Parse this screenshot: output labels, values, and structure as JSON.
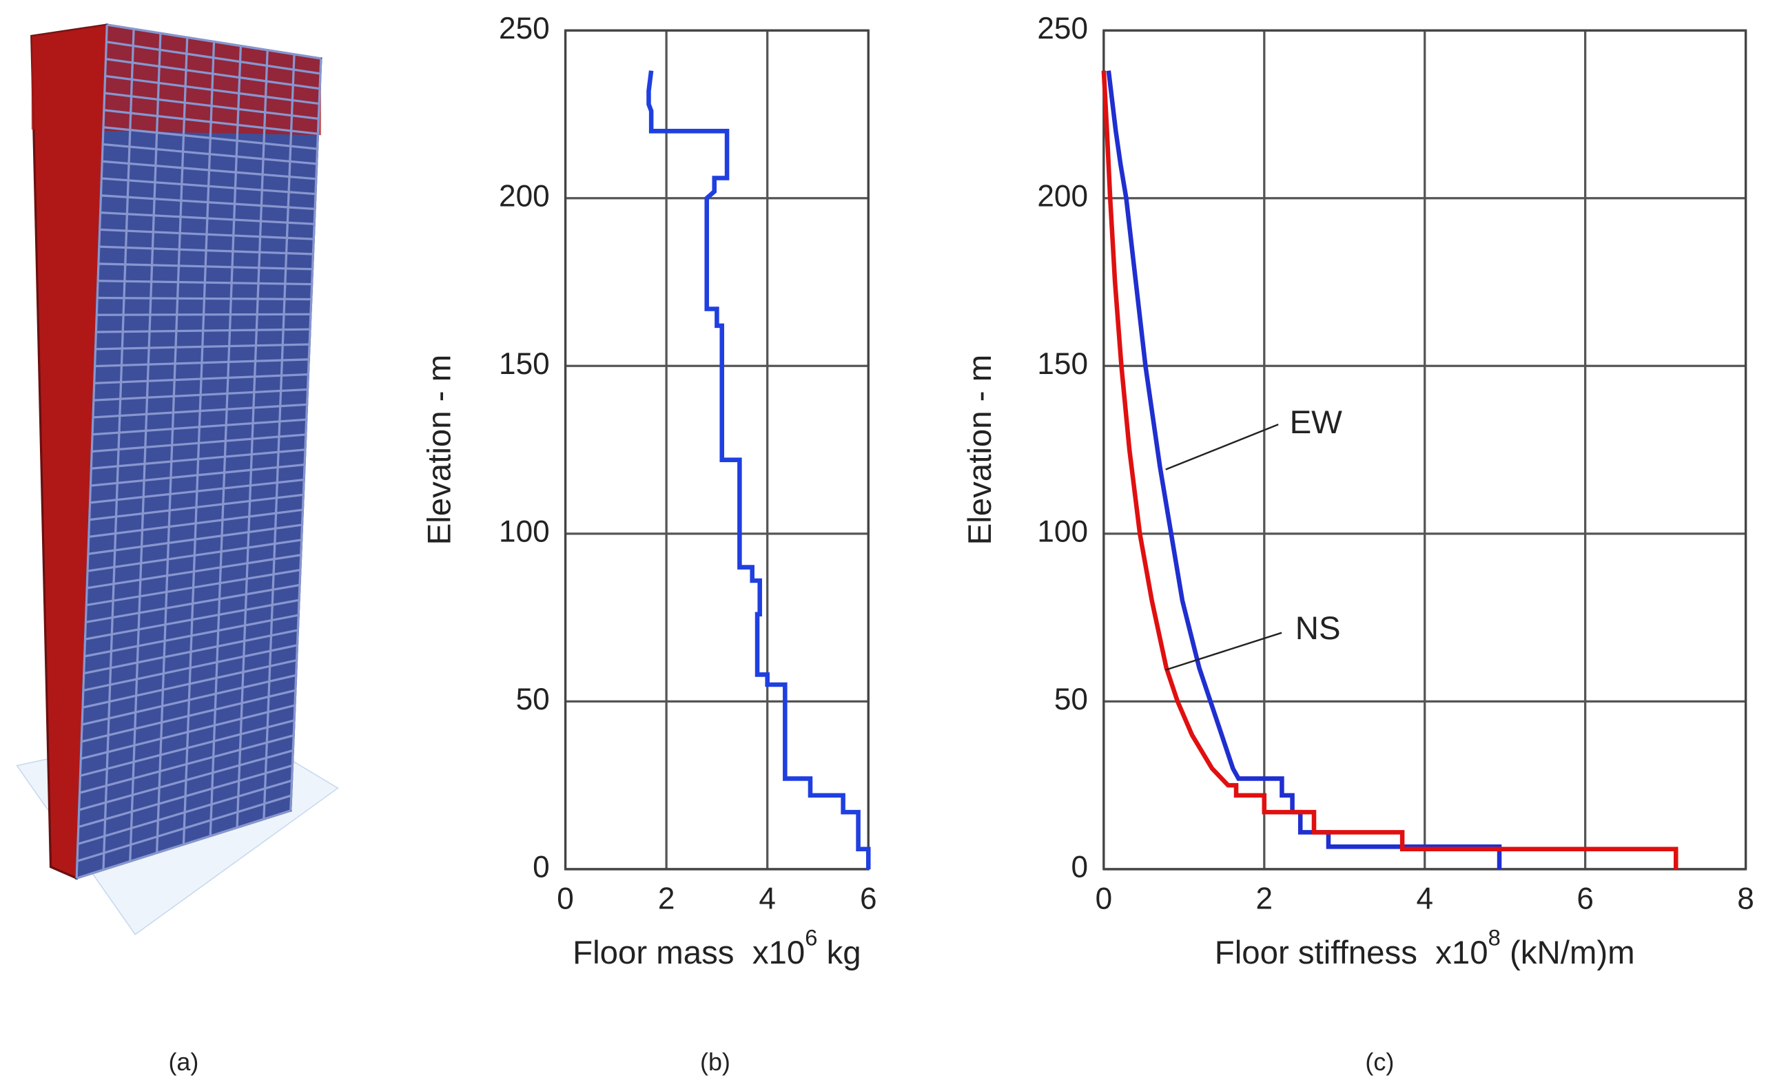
{
  "captions": [
    "(a)",
    "(b)",
    "(c)"
  ],
  "chart_data": [
    {
      "type": "line",
      "x_label": "Floor mass  x10",
      "x_label_exponent": "6",
      "x_label_unit": " kg",
      "y_label": "Elevation - m",
      "xlim": [
        0,
        6
      ],
      "xticks": [
        0,
        2,
        4,
        6
      ],
      "ylim": [
        0,
        250
      ],
      "yticks": [
        0,
        50,
        100,
        150,
        200,
        250
      ],
      "grid": true,
      "series": [
        {
          "name": "Floor mass",
          "color": "#1f3fe0",
          "x": [
            1.7,
            1.65,
            1.65,
            1.7,
            1.7,
            3.2,
            3.2,
            2.95,
            2.95,
            2.8,
            2.8,
            3.0,
            3.0,
            3.1,
            3.1,
            3.45,
            3.45,
            3.7,
            3.7,
            3.85,
            3.85,
            3.8,
            3.8,
            4.0,
            4.0,
            4.35,
            4.35,
            4.85,
            4.85,
            5.5,
            5.5,
            5.8,
            5.8,
            6.0,
            6.0
          ],
          "values": [
            238,
            232,
            228,
            226,
            220,
            220,
            206,
            206,
            202,
            200,
            167,
            167,
            162,
            162,
            122,
            122,
            90,
            90,
            86,
            86,
            76,
            76,
            58,
            58,
            55,
            55,
            27,
            27,
            22,
            22,
            17,
            17,
            6,
            6,
            0
          ]
        }
      ]
    },
    {
      "type": "line",
      "x_label": "Floor stiffness  x10",
      "x_label_exponent": "8",
      "x_label_unit": " (kN/m)m",
      "y_label": "Elevation - m",
      "xlim": [
        0,
        8
      ],
      "xticks": [
        0,
        2,
        4,
        6,
        8
      ],
      "ylim": [
        0,
        250
      ],
      "yticks": [
        0,
        50,
        100,
        150,
        200,
        250
      ],
      "grid": true,
      "series": [
        {
          "name": "EW",
          "color": "#1f2fd0",
          "x": [
            0.06,
            0.15,
            0.21,
            0.28,
            0.4,
            0.52,
            0.7,
            0.84,
            0.98,
            1.19,
            1.33,
            1.47,
            1.61,
            1.68,
            2.22,
            2.22,
            2.35,
            2.35,
            2.45,
            2.45,
            2.8,
            2.8,
            4.93,
            4.93
          ],
          "values": [
            238,
            220,
            210,
            200,
            175,
            150,
            120,
            100,
            80,
            60,
            50,
            40,
            30,
            27,
            27,
            22,
            22,
            17,
            17,
            11,
            11,
            6.7,
            6.7,
            0
          ]
        },
        {
          "name": "NS",
          "color": "#e01010",
          "x": [
            0.0,
            0.04,
            0.08,
            0.14,
            0.22,
            0.32,
            0.45,
            0.6,
            0.78,
            0.92,
            1.1,
            1.35,
            1.55,
            1.65,
            1.65,
            2.0,
            2.0,
            2.62,
            2.62,
            3.72,
            3.72,
            7.13,
            7.13
          ],
          "values": [
            238,
            220,
            200,
            175,
            150,
            125,
            100,
            80,
            60,
            50,
            40,
            30,
            25,
            25,
            22,
            22,
            17,
            17,
            11,
            11,
            6,
            6,
            0
          ]
        }
      ]
    }
  ]
}
